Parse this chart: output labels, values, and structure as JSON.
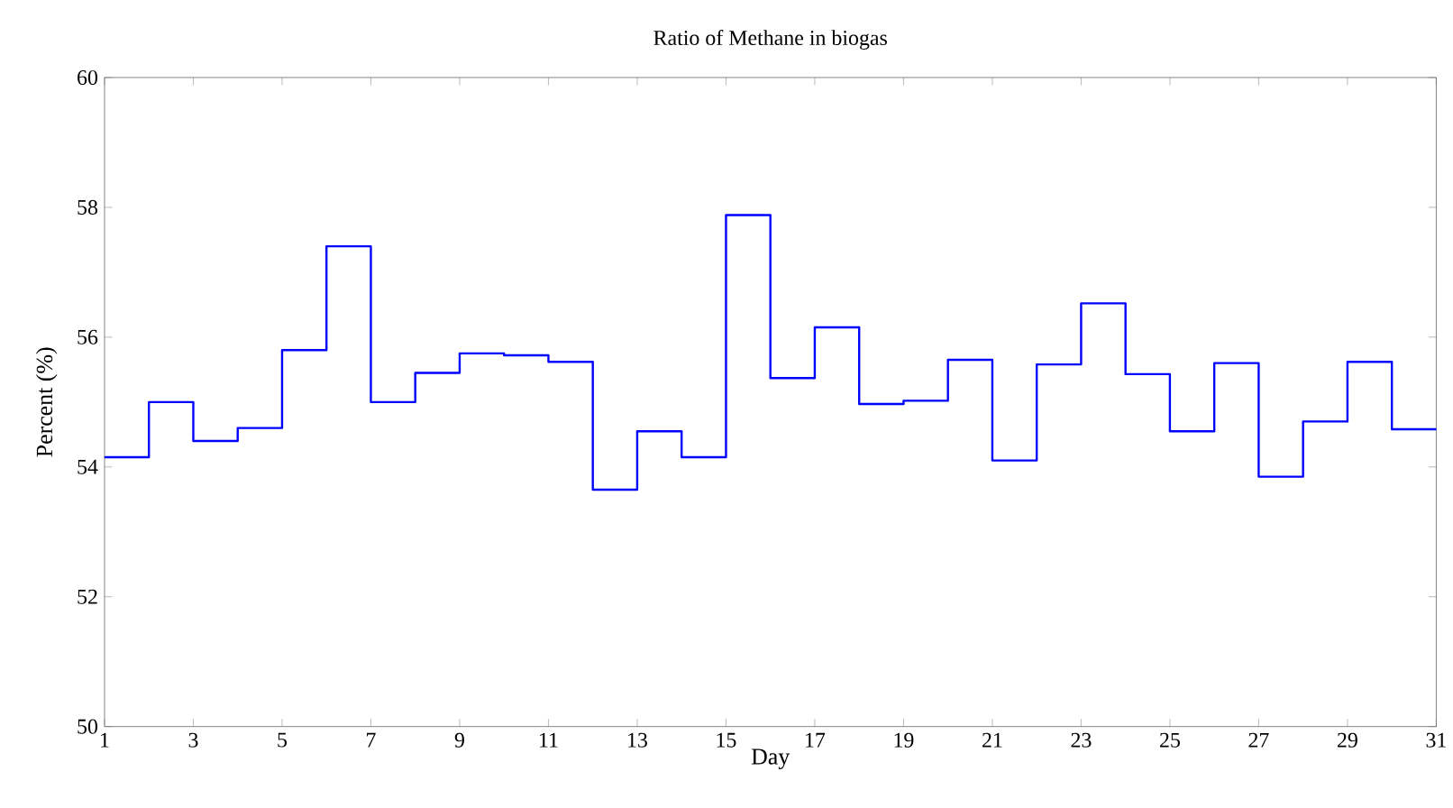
{
  "chart_data": {
    "type": "step",
    "title": "Ratio of Methane in biogas",
    "xlabel": "Day",
    "ylabel": "Percent (%)",
    "x": [
      1,
      2,
      3,
      4,
      5,
      6,
      7,
      8,
      9,
      10,
      11,
      12,
      13,
      14,
      15,
      16,
      17,
      18,
      19,
      20,
      21,
      22,
      23,
      24,
      25,
      26,
      27,
      28,
      29,
      30,
      31
    ],
    "series": [
      {
        "color": "#0000ff",
        "values": [
          54.15,
          55.0,
          54.4,
          54.6,
          55.8,
          57.4,
          55.0,
          55.45,
          55.75,
          55.72,
          55.62,
          53.65,
          54.55,
          54.15,
          57.88,
          55.37,
          56.15,
          54.97,
          55.02,
          55.65,
          54.1,
          55.58,
          56.52,
          55.43,
          54.55,
          55.6,
          53.85,
          54.7,
          55.62,
          54.58,
          54.58
        ]
      }
    ],
    "xlim": [
      1,
      31
    ],
    "ylim": [
      50,
      60
    ],
    "xticks": [
      1,
      3,
      5,
      7,
      9,
      11,
      13,
      15,
      17,
      19,
      21,
      23,
      25,
      27,
      29,
      31
    ],
    "yticks": [
      50,
      52,
      54,
      56,
      58,
      60
    ],
    "grid": false
  }
}
